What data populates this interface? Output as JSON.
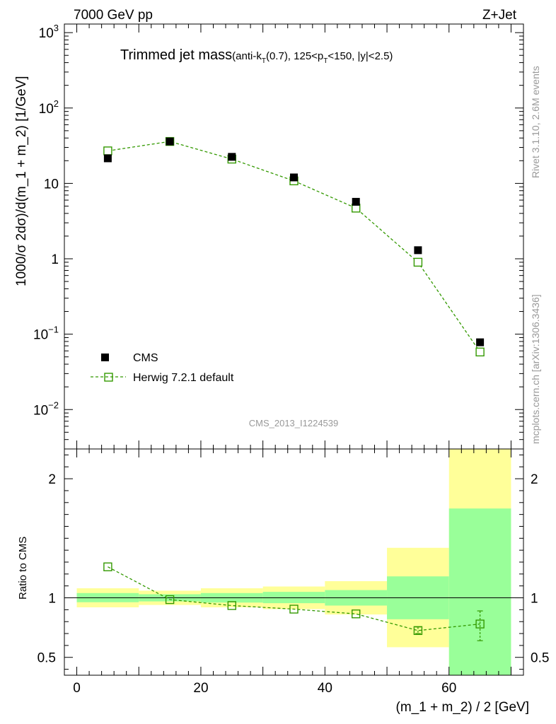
{
  "header": {
    "left": "7000 GeV pp",
    "right": "Z+Jet"
  },
  "side_text": {
    "rivet": "Rivet 3.1.10,  2.6M events",
    "mcplots": "mcplots.cern.ch [arXiv:1306.3436]"
  },
  "watermark": "CMS_2013_I1224539",
  "legend": {
    "data_label": "CMS",
    "mc_label": "Herwig 7.2.1 default"
  },
  "colors": {
    "data": "#000000",
    "mc": "#339900",
    "band_inner": "#99ff99",
    "band_outer": "#ffff99"
  },
  "chart_data": [
    {
      "type": "scatter",
      "title_main": "Trimmed jet mass",
      "title_detail": {
        "t1": "(anti-k",
        "s1": "T",
        "t2": "(0.7), 125<p",
        "s2": "T",
        "t3": "<150, |y|<2.5)"
      },
      "ylabel": "1000/σ 2dσ)/d(m_1 + m_2) [1/GeV]",
      "yscale": "log",
      "ylim": [
        0.003,
        1300
      ],
      "xlim": [
        -2,
        72
      ],
      "y_ticks": [
        {
          "value": 0.01,
          "base": "10",
          "exp": "−2"
        },
        {
          "value": 0.1,
          "base": "10",
          "exp": "−1"
        },
        {
          "value": 1,
          "base": "1",
          "exp": ""
        },
        {
          "value": 10,
          "base": "10",
          "exp": ""
        },
        {
          "value": 100,
          "base": "10",
          "exp": "2"
        },
        {
          "value": 1000,
          "base": "10",
          "exp": "3"
        }
      ],
      "x": [
        5,
        15,
        25,
        35,
        45,
        55,
        65
      ],
      "series": [
        {
          "name": "CMS",
          "values": [
            21.5,
            36.0,
            22.5,
            12.0,
            5.7,
            1.3,
            0.078
          ]
        },
        {
          "name": "Herwig 7.2.1 default",
          "values": [
            27.0,
            36.0,
            21.0,
            10.8,
            4.7,
            0.9,
            0.058
          ],
          "errors": [
            0,
            0,
            0,
            0,
            0,
            0,
            0.006
          ]
        }
      ]
    },
    {
      "type": "line",
      "ylabel": "Ratio to CMS",
      "xlabel": "(m_1 + m_2) / 2 [GeV]",
      "ylim": [
        0.35,
        2.25
      ],
      "xlim": [
        -2,
        72
      ],
      "x_ticks": [
        0,
        20,
        40,
        60
      ],
      "y_ticks": [
        0.5,
        1,
        2
      ],
      "bins": [
        {
          "lo": 0,
          "hi": 10,
          "inner": [
            0.963,
            1.04
          ],
          "outer": [
            0.92,
            1.08
          ]
        },
        {
          "lo": 10,
          "hi": 20,
          "inner": [
            0.97,
            1.03
          ],
          "outer": [
            0.94,
            1.06
          ]
        },
        {
          "lo": 20,
          "hi": 30,
          "inner": [
            0.96,
            1.04
          ],
          "outer": [
            0.92,
            1.08
          ]
        },
        {
          "lo": 30,
          "hi": 40,
          "inner": [
            0.955,
            1.05
          ],
          "outer": [
            0.905,
            1.095
          ]
        },
        {
          "lo": 40,
          "hi": 50,
          "inner": [
            0.935,
            1.065
          ],
          "outer": [
            0.86,
            1.14
          ]
        },
        {
          "lo": 50,
          "hi": 60,
          "inner": [
            0.82,
            1.18
          ],
          "outer": [
            0.585,
            1.42
          ]
        },
        {
          "lo": 60,
          "hi": 70,
          "inner": [
            0.35,
            1.75
          ],
          "outer": [
            0.35,
            2.25
          ]
        }
      ],
      "x": [
        5,
        15,
        25,
        35,
        45,
        55,
        65
      ],
      "series": [
        {
          "name": "Herwig 7.2.1 default",
          "values": [
            1.26,
            0.985,
            0.935,
            0.905,
            0.865,
            0.725,
            0.78
          ],
          "err_lo": [
            0,
            0,
            0,
            0,
            0,
            0.025,
            0.14
          ],
          "err_hi": [
            0,
            0,
            0,
            0,
            0,
            0.03,
            0.11
          ]
        }
      ]
    }
  ]
}
